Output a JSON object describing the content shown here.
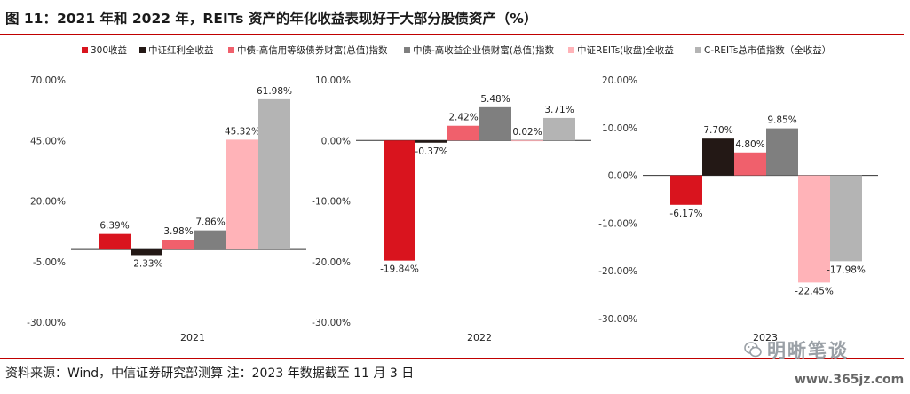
{
  "title": "图 11：2021 年和 2022 年，REITs 资产的年化收益表现好于大部分股债资产（%）",
  "source": "资料来源：Wind，中信证券研究部测算  注：2023 年数据截至 11 月 3 日",
  "watermark": {
    "text": "明晰笔谈",
    "icon": "wechat-icon"
  },
  "site": "www.365jz.com",
  "colors": {
    "accent": "#c00000",
    "s300": "#d9141e",
    "sdiv": "#231815",
    "scredit": "#f0606c",
    "shy": "#7f7f7f",
    "sreits": "#ffb3b8",
    "screits": "#b4b4b4"
  },
  "legend": [
    {
      "label": "300收益",
      "color": "#d9141e"
    },
    {
      "label": "中证红利全收益",
      "color": "#231815"
    },
    {
      "label": "中债-高信用等级债券财富(总值)指数",
      "color": "#f0606c"
    },
    {
      "label": "中债-高收益企业债财富(总值)指数",
      "color": "#7f7f7f"
    },
    {
      "label": "中证REITs(收盘)全收益",
      "color": "#ffb3b8"
    },
    {
      "label": "C-REITs总市值指数（全收益）",
      "color": "#b4b4b4"
    }
  ],
  "chart_data": [
    {
      "type": "bar",
      "category": "2021",
      "ylim": [
        -30,
        70
      ],
      "ticks": [
        -30,
        -5,
        20,
        45,
        70
      ],
      "tick_labels": [
        "-30.00%",
        "-5.00%",
        "20.00%",
        "45.00%",
        "70.00%"
      ],
      "series": [
        {
          "name": "300收益",
          "value": 6.39,
          "label": "6.39%"
        },
        {
          "name": "中证红利全收益",
          "value": -2.33,
          "label": "-2.33%"
        },
        {
          "name": "中债-高信用等级债券财富(总值)指数",
          "value": 3.98,
          "label": "3.98%"
        },
        {
          "name": "中债-高收益企业债财富(总值)指数",
          "value": 7.86,
          "label": "7.86%"
        },
        {
          "name": "中证REITs(收盘)全收益",
          "value": 45.32,
          "label": "45.32%"
        },
        {
          "name": "C-REITs总市值指数（全收益）",
          "value": 61.98,
          "label": "61.98%"
        }
      ]
    },
    {
      "type": "bar",
      "category": "2022",
      "ylim": [
        -30,
        10
      ],
      "ticks": [
        -30,
        -20,
        -10,
        0,
        10
      ],
      "tick_labels": [
        "-30.00%",
        "-20.00%",
        "-10.00%",
        "0.00%",
        "10.00%"
      ],
      "series": [
        {
          "name": "300收益",
          "value": -19.84,
          "label": "-19.84%"
        },
        {
          "name": "中证红利全收益",
          "value": -0.37,
          "label": "-0.37%"
        },
        {
          "name": "中债-高信用等级债券财富(总值)指数",
          "value": 2.42,
          "label": "2.42%"
        },
        {
          "name": "中债-高收益企业债财富(总值)指数",
          "value": 5.48,
          "label": "5.48%"
        },
        {
          "name": "中证REITs(收盘)全收益",
          "value": 0.02,
          "label": "0.02%"
        },
        {
          "name": "C-REITs总市值指数（全收益）",
          "value": 3.71,
          "label": "3.71%"
        }
      ]
    },
    {
      "type": "bar",
      "category": "2023",
      "ylim": [
        -30,
        20
      ],
      "ticks": [
        -30,
        -20,
        -10,
        0,
        10,
        20
      ],
      "tick_labels": [
        "-30.00%",
        "-20.00%",
        "-10.00%",
        "0.00%",
        "10.00%",
        "20.00%"
      ],
      "series": [
        {
          "name": "300收益",
          "value": -6.17,
          "label": "-6.17%"
        },
        {
          "name": "中证红利全收益",
          "value": 7.7,
          "label": "7.70%"
        },
        {
          "name": "中债-高信用等级债券财富(总值)指数",
          "value": 4.8,
          "label": "4.80%"
        },
        {
          "name": "中债-高收益企业债财富(总值)指数",
          "value": 9.85,
          "label": "9.85%"
        },
        {
          "name": "中证REITs(收盘)全收益",
          "value": -22.45,
          "label": "-22.45%"
        },
        {
          "name": "C-REITs总市值指数（全收益）",
          "value": -17.98,
          "label": "-17.98%"
        }
      ]
    }
  ]
}
